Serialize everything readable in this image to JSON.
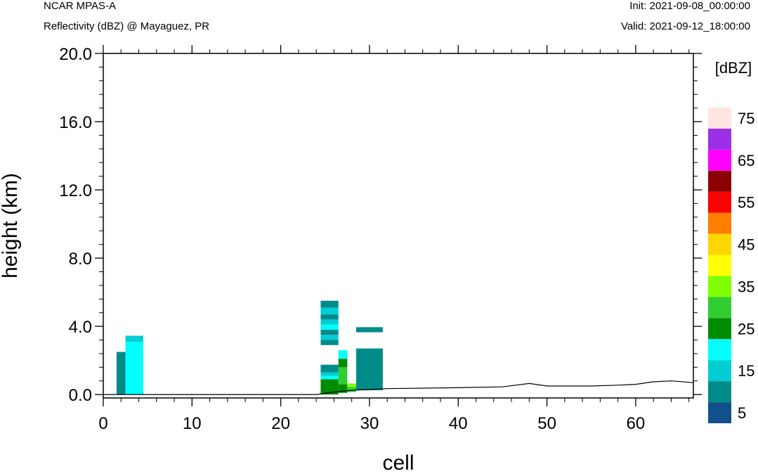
{
  "header": {
    "left_title": "NCAR MPAS-A",
    "left_subtitle": "Reflectivity (dBZ) @ Mayaguez, PR",
    "right_title": "Init: 2021-09-08_00:00:00",
    "right_subtitle": "Valid: 2021-09-12_18:00:00"
  },
  "chart_data": {
    "type": "heatmap",
    "xlabel": "cell",
    "ylabel": "height (km)",
    "xlim": [
      0,
      66.5
    ],
    "ylim": [
      -0.2,
      20.0
    ],
    "x_ticks": [
      0,
      10,
      20,
      30,
      40,
      50,
      60
    ],
    "y_ticks": [
      0.0,
      4.0,
      8.0,
      12.0,
      16.0,
      20.0
    ],
    "y_tick_labels": [
      "0.0",
      "4.0",
      "8.0",
      "12.0",
      "16.0",
      "20.0"
    ],
    "colorbar": {
      "title": "[dBZ]",
      "levels": [
        0,
        5,
        10,
        15,
        20,
        25,
        30,
        35,
        40,
        45,
        50,
        55,
        60,
        65,
        70,
        75
      ],
      "tick_labels": [
        "5",
        "15",
        "25",
        "35",
        "45",
        "55",
        "65",
        "75"
      ],
      "colors": [
        "#12508c",
        "#008b8b",
        "#00ced1",
        "#00ffff",
        "#008b00",
        "#32cd32",
        "#7fff00",
        "#ffff00",
        "#ffd700",
        "#ff7f00",
        "#ff0000",
        "#8b0000",
        "#ff00ff",
        "#9b30e8",
        "#ffe4e1"
      ]
    },
    "cells": [
      {
        "x0": 1.5,
        "x1": 2.5,
        "y0": 0.0,
        "y1": 2.5,
        "dbz": 5
      },
      {
        "x0": 2.5,
        "x1": 4.5,
        "y0": 0.0,
        "y1": 3.1,
        "dbz": 15
      },
      {
        "x0": 2.5,
        "x1": 4.5,
        "y0": 3.1,
        "y1": 3.45,
        "dbz": 10
      },
      {
        "x0": 24.5,
        "x1": 26.5,
        "y0": 0.0,
        "y1": 0.4,
        "dbz": 20
      },
      {
        "x0": 24.5,
        "x1": 26.5,
        "y0": 0.4,
        "y1": 0.9,
        "dbz": 20
      },
      {
        "x0": 24.5,
        "x1": 26.5,
        "y0": 0.9,
        "y1": 1.1,
        "dbz": 15
      },
      {
        "x0": 24.5,
        "x1": 26.5,
        "y0": 1.1,
        "y1": 1.3,
        "dbz": 10
      },
      {
        "x0": 24.5,
        "x1": 26.5,
        "y0": 1.3,
        "y1": 1.75,
        "dbz": 5
      },
      {
        "x0": 24.5,
        "x1": 26.5,
        "y0": 2.9,
        "y1": 3.2,
        "dbz": 5
      },
      {
        "x0": 24.5,
        "x1": 26.5,
        "y0": 3.2,
        "y1": 3.5,
        "dbz": 10
      },
      {
        "x0": 24.5,
        "x1": 26.5,
        "y0": 3.5,
        "y1": 3.8,
        "dbz": 5
      },
      {
        "x0": 24.5,
        "x1": 26.5,
        "y0": 3.8,
        "y1": 4.1,
        "dbz": 15
      },
      {
        "x0": 24.5,
        "x1": 26.5,
        "y0": 4.1,
        "y1": 4.4,
        "dbz": 10
      },
      {
        "x0": 24.5,
        "x1": 26.5,
        "y0": 4.4,
        "y1": 4.7,
        "dbz": 5
      },
      {
        "x0": 24.5,
        "x1": 26.5,
        "y0": 4.7,
        "y1": 5.1,
        "dbz": 10
      },
      {
        "x0": 24.5,
        "x1": 26.5,
        "y0": 5.1,
        "y1": 5.5,
        "dbz": 5
      },
      {
        "x0": 26.5,
        "x1": 27.5,
        "y0": 0.1,
        "y1": 0.6,
        "dbz": 20
      },
      {
        "x0": 26.5,
        "x1": 27.5,
        "y0": 0.6,
        "y1": 1.6,
        "dbz": 25
      },
      {
        "x0": 26.5,
        "x1": 27.5,
        "y0": 1.6,
        "y1": 2.1,
        "dbz": 20
      },
      {
        "x0": 26.5,
        "x1": 27.5,
        "y0": 2.1,
        "y1": 2.6,
        "dbz": 15
      },
      {
        "x0": 27.5,
        "x1": 28.5,
        "y0": 0.15,
        "y1": 0.45,
        "dbz": 25
      },
      {
        "x0": 27.5,
        "x1": 28.5,
        "y0": 0.45,
        "y1": 0.65,
        "dbz": 30
      },
      {
        "x0": 28.5,
        "x1": 31.5,
        "y0": 0.25,
        "y1": 2.7,
        "dbz": 5
      },
      {
        "x0": 28.5,
        "x1": 31.5,
        "y0": 3.65,
        "y1": 3.95,
        "dbz": 5
      }
    ],
    "terrain": [
      [
        0,
        0
      ],
      [
        24,
        0
      ],
      [
        26,
        0.15
      ],
      [
        28,
        0.25
      ],
      [
        30,
        0.3
      ],
      [
        32,
        0.35
      ],
      [
        40,
        0.4
      ],
      [
        45,
        0.45
      ],
      [
        48,
        0.65
      ],
      [
        50,
        0.5
      ],
      [
        55,
        0.5
      ],
      [
        58,
        0.55
      ],
      [
        60,
        0.6
      ],
      [
        62,
        0.75
      ],
      [
        64,
        0.8
      ],
      [
        66.5,
        0.7
      ]
    ]
  }
}
